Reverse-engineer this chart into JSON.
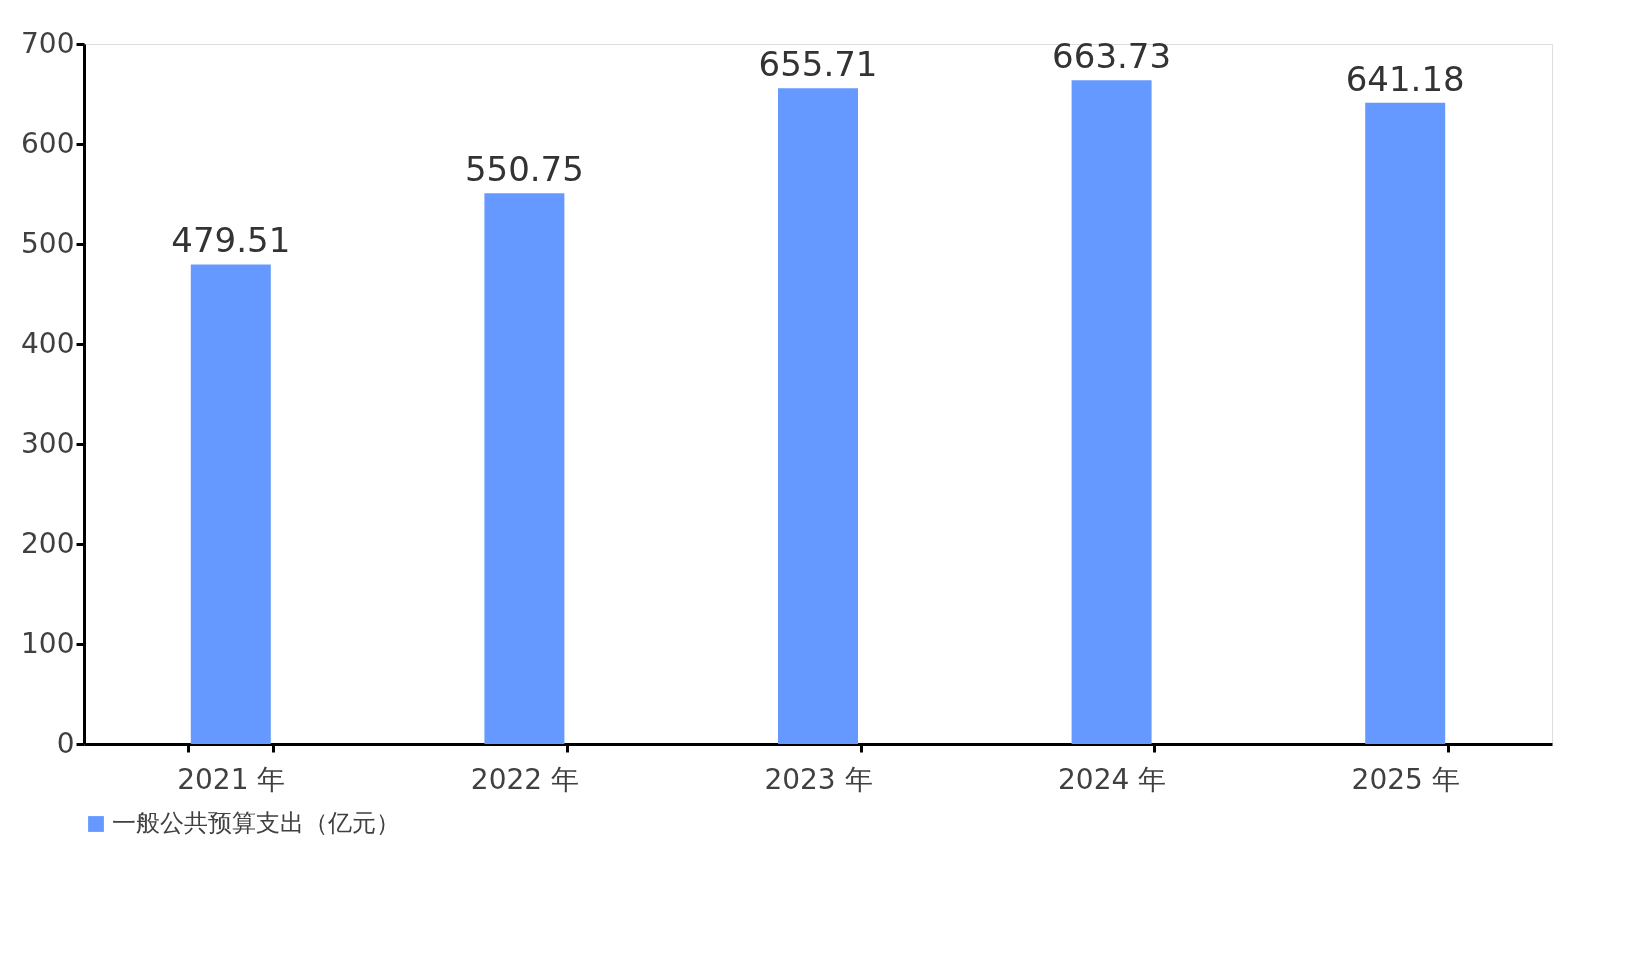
{
  "chart_data": {
    "type": "bar",
    "categories": [
      "2021 年",
      "2022 年",
      "2023 年",
      "2024 年",
      "2025 年"
    ],
    "series": [
      {
        "name": "一般公共预算支出（亿元）",
        "color": "#6699ff",
        "values": [
          479.51,
          550.75,
          655.71,
          663.73,
          641.18
        ]
      }
    ],
    "ylim": [
      0,
      700
    ],
    "yticks": [
      0,
      100,
      200,
      300,
      400,
      500,
      600,
      700
    ],
    "data_labels": true,
    "legend": "bottom",
    "grid": false
  }
}
